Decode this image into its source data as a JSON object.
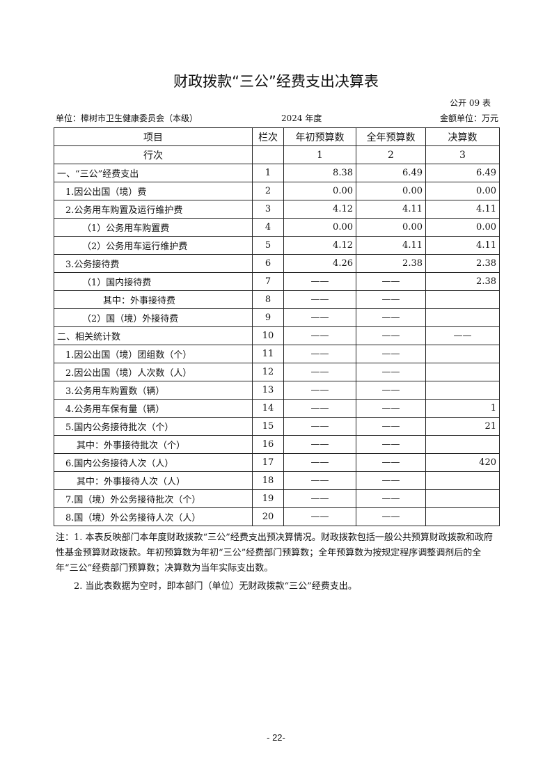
{
  "title": "财政拨款“三公”经费支出决算表",
  "form_no": "公开 09 表",
  "unit": "单位：樟树市卫生健康委员会（本级）",
  "year": "2024 年度",
  "amount_unit": "金额单位：万元",
  "headers": [
    "项目",
    "栏次",
    "年初预算数",
    "全年预算数",
    "决算数"
  ],
  "index_row": [
    "行次",
    "",
    "1",
    "2",
    "3"
  ],
  "rows": [
    {
      "item": "一、“三公”经费支出",
      "no": "1",
      "a": "8.38",
      "b": "6.49",
      "c": "6.49",
      "lvl": 0
    },
    {
      "item": "1.因公出国（境）费",
      "no": "2",
      "a": "0.00",
      "b": "0.00",
      "c": "0.00",
      "lvl": 1
    },
    {
      "item": "2.公务用车购置及运行维护费",
      "no": "3",
      "a": "4.12",
      "b": "4.11",
      "c": "4.11",
      "lvl": 1
    },
    {
      "item": "（1）公务用车购置费",
      "no": "4",
      "a": "0.00",
      "b": "0.00",
      "c": "0.00",
      "lvl": 2
    },
    {
      "item": "（2）公务用车运行维护费",
      "no": "5",
      "a": "4.12",
      "b": "4.11",
      "c": "4.11",
      "lvl": 2
    },
    {
      "item": "3.公务接待费",
      "no": "6",
      "a": "4.26",
      "b": "2.38",
      "c": "2.38",
      "lvl": 1
    },
    {
      "item": "（1）国内接待费",
      "no": "7",
      "a": "——",
      "b": "——",
      "c": "2.38",
      "lvl": 2
    },
    {
      "item": "其中：外事接待费",
      "no": "8",
      "a": "——",
      "b": "——",
      "c": "",
      "lvl": 4
    },
    {
      "item": "（2）国（境）外接待费",
      "no": "9",
      "a": "——",
      "b": "——",
      "c": "",
      "lvl": 2
    },
    {
      "item": "二、相关统计数",
      "no": "10",
      "a": "——",
      "b": "——",
      "c": "——",
      "lvl": 0
    },
    {
      "item": "1.因公出国（境）团组数（个）",
      "no": "11",
      "a": "——",
      "b": "——",
      "c": "",
      "lvl": 1
    },
    {
      "item": "2.因公出国（境）人次数（人）",
      "no": "12",
      "a": "——",
      "b": "——",
      "c": "",
      "lvl": 1
    },
    {
      "item": "3.公务用车购置数（辆）",
      "no": "13",
      "a": "——",
      "b": "——",
      "c": "",
      "lvl": 1
    },
    {
      "item": "4.公务用车保有量（辆）",
      "no": "14",
      "a": "——",
      "b": "——",
      "c": "1",
      "lvl": 1
    },
    {
      "item": "5.国内公务接待批次（个）",
      "no": "15",
      "a": "——",
      "b": "——",
      "c": "21",
      "lvl": 1
    },
    {
      "item": "其中：外事接待批次（个）",
      "no": "16",
      "a": "——",
      "b": "——",
      "c": "",
      "lvl": 3
    },
    {
      "item": "6.国内公务接待人次（人）",
      "no": "17",
      "a": "——",
      "b": "——",
      "c": "420",
      "lvl": 1
    },
    {
      "item": "其中：外事接待人次（人）",
      "no": "18",
      "a": "——",
      "b": "——",
      "c": "",
      "lvl": 3
    },
    {
      "item": "7.国（境）外公务接待批次（个）",
      "no": "19",
      "a": "——",
      "b": "——",
      "c": "",
      "lvl": 1
    },
    {
      "item": "8.国（境）外公务接待人次（人）",
      "no": "20",
      "a": "——",
      "b": "——",
      "c": "",
      "lvl": 1
    }
  ],
  "notes": [
    "注：1. 本表反映部门本年度财政拨款“三公”经费支出预决算情况。财政拨款包括一般公共预算财政拨款和政府性基金预算财政拨款。年初预算数为年初“三公”经费部门预算数；全年预算数为按规定程序调整调剂后的全年“三公”经费部门预算数；决算数为当年实际支出数。",
    "2. 当此表数据为空时，即本部门（单位）无财政拨款“三公”经费支出。"
  ],
  "page_number": "- 22-"
}
